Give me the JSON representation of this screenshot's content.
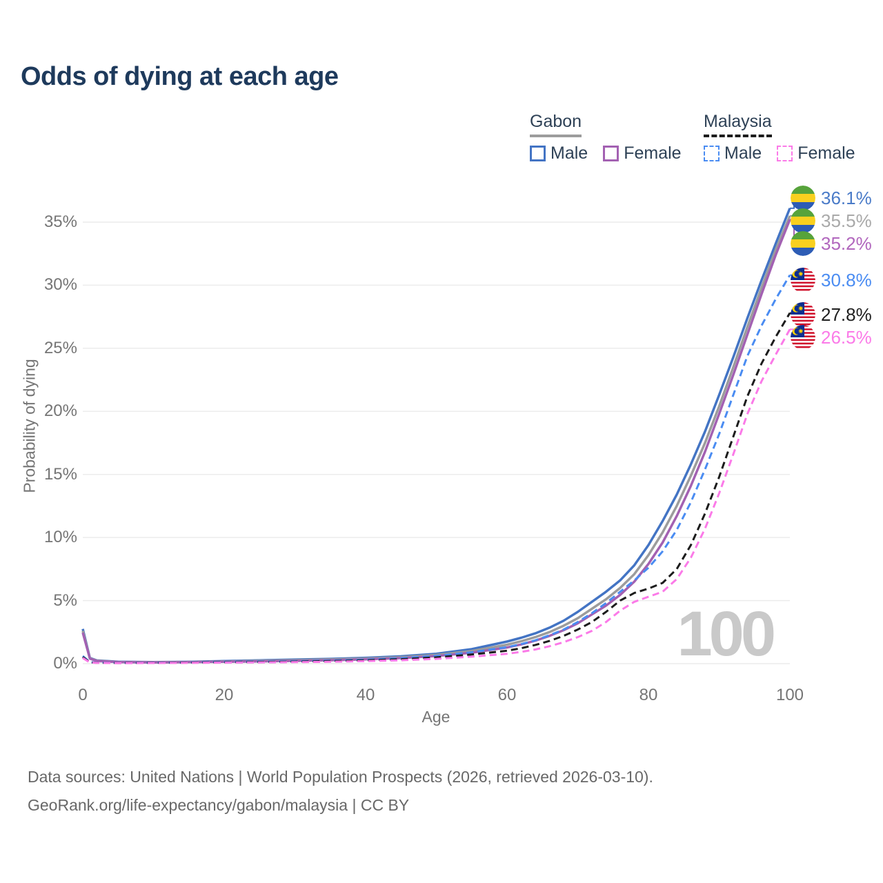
{
  "title": "Odds of dying at each age",
  "legend": {
    "groups": [
      {
        "title": "Gabon",
        "style": "solid",
        "items": [
          {
            "label": "Male"
          },
          {
            "label": "Female"
          }
        ]
      },
      {
        "title": "Malaysia",
        "style": "dashed",
        "items": [
          {
            "label": "Male"
          },
          {
            "label": "Female"
          }
        ]
      }
    ]
  },
  "watermark": "100",
  "footer": {
    "line1": "Data sources: United Nations | World Population Prospects (2026, retrieved 2026-03-10).",
    "line2": "GeoRank.org/life-expectancy/gabon/malaysia | CC BY"
  },
  "colors": {
    "title": "#1e3a5c",
    "legend_text": "#2e4156",
    "axis_text": "#757575",
    "grid": "#ececec",
    "watermark": "#c9c9c9",
    "footer_text": "#686868"
  },
  "chart_data": {
    "type": "line",
    "title": "Odds of dying at each age",
    "xlabel": "Age",
    "ylabel": "Probability of dying",
    "xlim": [
      0,
      100
    ],
    "ylim": [
      0,
      37
    ],
    "x_ticks": [
      "0",
      "20",
      "40",
      "60",
      "80",
      "100"
    ],
    "y_ticks": [
      "0%",
      "5%",
      "10%",
      "15%",
      "20%",
      "25%",
      "30%",
      "35%"
    ],
    "grid": "horizontal",
    "legend_position": "top-right",
    "ages": [
      0,
      1,
      2,
      5,
      10,
      15,
      20,
      25,
      30,
      35,
      40,
      45,
      50,
      55,
      60,
      62,
      64,
      66,
      68,
      70,
      72,
      74,
      76,
      78,
      80,
      82,
      84,
      86,
      88,
      90,
      92,
      94,
      96,
      98,
      100
    ],
    "series": [
      {
        "key": "gabon-male",
        "country": "Gabon",
        "sex": "Male",
        "line": "solid",
        "color": "#4374c4",
        "label_color": "#4a7bc8",
        "end_label": "36.1%",
        "end_value": 36.1,
        "flag": "gabon",
        "values": [
          2.75,
          0.45,
          0.25,
          0.15,
          0.12,
          0.14,
          0.2,
          0.26,
          0.32,
          0.38,
          0.46,
          0.58,
          0.78,
          1.15,
          1.75,
          2.05,
          2.4,
          2.85,
          3.4,
          4.1,
          4.9,
          5.7,
          6.6,
          7.8,
          9.4,
          11.3,
          13.4,
          15.8,
          18.4,
          21.3,
          24.3,
          27.4,
          30.4,
          33.3,
          36.1
        ]
      },
      {
        "key": "gabon-all",
        "country": "Gabon",
        "sex": "Both sexes",
        "line": "solid",
        "color": "#9c9c9c",
        "label_color": "#a9a9a9",
        "end_label": "35.5%",
        "end_value": 35.5,
        "flag": "gabon",
        "values": [
          2.6,
          0.42,
          0.23,
          0.13,
          0.11,
          0.13,
          0.17,
          0.22,
          0.27,
          0.33,
          0.4,
          0.51,
          0.69,
          1.0,
          1.5,
          1.77,
          2.1,
          2.5,
          3.0,
          3.6,
          4.35,
          5.1,
          6.0,
          7.1,
          8.6,
          10.4,
          12.5,
          14.9,
          17.5,
          20.4,
          23.5,
          26.7,
          29.8,
          32.8,
          35.5
        ]
      },
      {
        "key": "gabon-female",
        "country": "Gabon",
        "sex": "Female",
        "line": "solid",
        "color": "#a361b2",
        "label_color": "#b166bd",
        "end_label": "35.2%",
        "end_value": 35.2,
        "flag": "gabon",
        "values": [
          2.45,
          0.4,
          0.21,
          0.12,
          0.1,
          0.12,
          0.15,
          0.18,
          0.22,
          0.27,
          0.34,
          0.44,
          0.6,
          0.87,
          1.28,
          1.52,
          1.82,
          2.2,
          2.65,
          3.2,
          3.9,
          4.6,
          5.45,
          6.5,
          7.9,
          9.6,
          11.7,
          14.1,
          16.8,
          19.8,
          22.9,
          26.1,
          29.3,
          32.4,
          35.2
        ]
      },
      {
        "key": "malaysia-male",
        "country": "Malaysia",
        "sex": "Male",
        "line": "dashed",
        "color": "#4a8cf2",
        "label_color": "#4a8cf2",
        "end_label": "30.8%",
        "end_value": 30.8,
        "flag": "malaysia",
        "values": [
          0.6,
          0.12,
          0.08,
          0.06,
          0.07,
          0.1,
          0.14,
          0.17,
          0.2,
          0.25,
          0.32,
          0.44,
          0.62,
          0.9,
          1.3,
          1.55,
          1.85,
          2.25,
          2.7,
          3.3,
          4.0,
          4.8,
          5.7,
          6.6,
          7.6,
          8.9,
          10.6,
          12.8,
          15.4,
          18.2,
          21.3,
          24.4,
          26.8,
          28.9,
          30.8
        ]
      },
      {
        "key": "malaysia-all",
        "country": "Malaysia",
        "sex": "Both sexes",
        "line": "dashed",
        "color": "#1c1c1c",
        "label_color": "#1f1f1f",
        "end_label": "27.8%",
        "end_value": 27.8,
        "flag": "malaysia",
        "values": [
          0.52,
          0.1,
          0.07,
          0.05,
          0.06,
          0.08,
          0.11,
          0.13,
          0.16,
          0.2,
          0.26,
          0.35,
          0.5,
          0.72,
          1.02,
          1.22,
          1.48,
          1.8,
          2.2,
          2.7,
          3.3,
          4.1,
          5.0,
          5.6,
          5.95,
          6.4,
          7.5,
          9.4,
          11.9,
          14.8,
          18.0,
          21.2,
          23.8,
          25.9,
          27.8
        ]
      },
      {
        "key": "malaysia-female",
        "country": "Malaysia",
        "sex": "Female",
        "line": "dashed",
        "color": "#fb7ae8",
        "label_color": "#fb7ae8",
        "end_label": "26.5%",
        "end_value": 26.5,
        "flag": "malaysia",
        "values": [
          0.45,
          0.09,
          0.06,
          0.04,
          0.05,
          0.06,
          0.08,
          0.1,
          0.12,
          0.15,
          0.2,
          0.27,
          0.38,
          0.55,
          0.78,
          0.93,
          1.12,
          1.38,
          1.7,
          2.1,
          2.6,
          3.3,
          4.2,
          4.9,
          5.3,
          5.7,
          6.7,
          8.4,
          10.7,
          13.5,
          16.6,
          19.8,
          22.4,
          24.5,
          26.5
        ]
      }
    ]
  }
}
